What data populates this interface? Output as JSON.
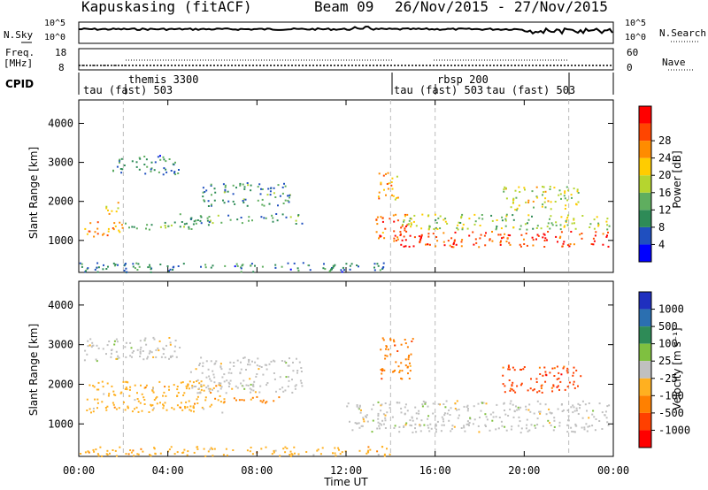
{
  "header": {
    "station": "Kapuskasing (fitACF)",
    "beam": "Beam 09",
    "date_range": "26/Nov/2015 - 27/Nov/2015"
  },
  "noise_panel": {
    "left_label": "N.Sky",
    "right_label": "N.Search",
    "left_ticks": [
      "10^5",
      "10^0"
    ],
    "right_ticks": [
      "10^5",
      "10^0"
    ]
  },
  "freq_panel": {
    "left_label_1": "Freq.",
    "left_label_2": "[MHz]",
    "right_label": "Nave",
    "left_ticks": [
      "18",
      "8"
    ],
    "right_ticks": [
      "60",
      "0"
    ]
  },
  "cpid": {
    "label": "CPID",
    "entries": [
      "tau (fast) 503",
      "themis 3300",
      "tau (fast) 503",
      "rbsp 200",
      "tau (fast) 503"
    ]
  },
  "colors": {
    "power": [
      "#0000ff",
      "#1f4fbf",
      "#2e8b57",
      "#5fae5f",
      "#b5d52f",
      "#ffcc00",
      "#ff8c00",
      "#ff4500",
      "#ff0000"
    ],
    "velocity": [
      "#1f2fbf",
      "#2b6fb0",
      "#2e8b57",
      "#7fc040",
      "#c0c0c0",
      "#ffb020",
      "#ff8000",
      "#ff4000",
      "#ff0000"
    ]
  },
  "chart_data": [
    {
      "type": "heatmap",
      "title": "",
      "xlabel": "Time UT",
      "ylabel": "Slant Range [km]",
      "x_ticks": [
        "00:00",
        "04:00",
        "08:00",
        "12:00",
        "16:00",
        "20:00",
        "00:00"
      ],
      "y_ticks": [
        "1000",
        "2000",
        "3000",
        "4000"
      ],
      "xlim_hours": [
        0,
        24
      ],
      "ylim_km": [
        180,
        4600
      ],
      "colorbar_label": "Power [dB]",
      "colorbar_ticks": [
        "4",
        "8",
        "12",
        "16",
        "20",
        "24",
        "28"
      ],
      "colorbar_range": [
        0,
        30
      ],
      "bands": [
        {
          "t0": 0.2,
          "t1": 2.0,
          "r0": 1100,
          "r1": 1500,
          "level": 22
        },
        {
          "t0": 1.2,
          "t1": 2.0,
          "r0": 1700,
          "r1": 2000,
          "level": 18
        },
        {
          "t0": 2.0,
          "t1": 6.0,
          "r0": 1300,
          "r1": 1500,
          "level": 12
        },
        {
          "t0": 4.5,
          "t1": 10.0,
          "r0": 1450,
          "r1": 1700,
          "level": 10
        },
        {
          "t0": 1.5,
          "t1": 4.5,
          "r0": 2700,
          "r1": 3200,
          "level": 8
        },
        {
          "t0": 5.5,
          "t1": 9.5,
          "r0": 1900,
          "r1": 2500,
          "level": 9
        },
        {
          "t0": 13.3,
          "t1": 15.0,
          "r0": 1000,
          "r1": 1700,
          "level": 24
        },
        {
          "t0": 14.2,
          "t1": 23.8,
          "r0": 850,
          "r1": 1250,
          "level": 26
        },
        {
          "t0": 14.5,
          "t1": 23.8,
          "r0": 1300,
          "r1": 1700,
          "level": 14
        },
        {
          "t0": 19.0,
          "t1": 22.5,
          "r0": 1800,
          "r1": 2400,
          "level": 16
        },
        {
          "t0": 13.4,
          "t1": 14.3,
          "r0": 2000,
          "r1": 2800,
          "level": 20
        },
        {
          "t0": 0.0,
          "t1": 14.0,
          "r0": 200,
          "r1": 450,
          "level": 8
        }
      ]
    },
    {
      "type": "heatmap",
      "title": "",
      "xlabel": "Time UT",
      "ylabel": "Slant Range [km]",
      "x_ticks": [
        "00:00",
        "04:00",
        "08:00",
        "12:00",
        "16:00",
        "20:00",
        "00:00"
      ],
      "y_ticks": [
        "1000",
        "2000",
        "3000",
        "4000"
      ],
      "xlim_hours": [
        0,
        24
      ],
      "ylim_km": [
        180,
        4600
      ],
      "colorbar_label": "Velocity [m s⁻¹]",
      "colorbar_ticks": [
        "1000",
        "500",
        "100",
        "25",
        "-25",
        "-100",
        "-500",
        "-1000"
      ],
      "bands": [
        {
          "t0": 0.2,
          "t1": 6.5,
          "r0": 1300,
          "r1": 2100,
          "cls": 5
        },
        {
          "t0": 0.2,
          "t1": 4.5,
          "r0": 2600,
          "r1": 3200,
          "cls": 4
        },
        {
          "t0": 5.0,
          "t1": 10.0,
          "r0": 1800,
          "r1": 2700,
          "cls": 4
        },
        {
          "t0": 6.0,
          "t1": 9.5,
          "r0": 1550,
          "r1": 1700,
          "cls": 6
        },
        {
          "t0": 12.0,
          "t1": 23.8,
          "r0": 800,
          "r1": 1600,
          "cls": 4
        },
        {
          "t0": 13.5,
          "t1": 15.0,
          "r0": 2100,
          "r1": 3200,
          "cls": 6
        },
        {
          "t0": 19.0,
          "t1": 22.5,
          "r0": 1800,
          "r1": 2500,
          "cls": 7
        },
        {
          "t0": 0.0,
          "t1": 14.0,
          "r0": 200,
          "r1": 450,
          "cls": 5
        }
      ]
    }
  ]
}
